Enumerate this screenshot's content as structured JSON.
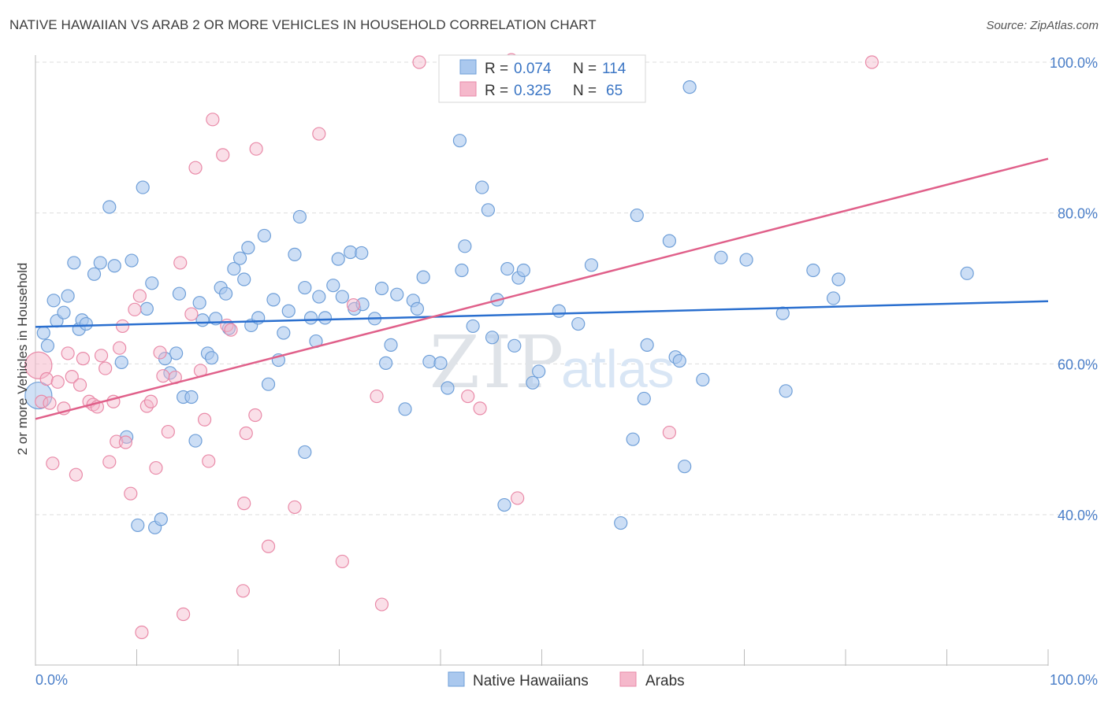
{
  "title": "NATIVE HAWAIIAN VS ARAB 2 OR MORE VEHICLES IN HOUSEHOLD CORRELATION CHART",
  "source": "Source: ZipAtlas.com",
  "watermark": {
    "zip": "ZIP",
    "atlas": "atlas"
  },
  "colors": {
    "blue_fill": "#aac8ee",
    "blue_stroke": "#6f9fd8",
    "blue_line": "#2a6fcf",
    "pink_fill": "#f5b8cb",
    "pink_stroke": "#e98aa8",
    "pink_line": "#e0608a",
    "tick_text": "#4a7ec8",
    "grid": "#dddddd"
  },
  "legend": {
    "r_label": "R =",
    "n_label": "N =",
    "rows": [
      {
        "r": "0.074",
        "n": "114"
      },
      {
        "r": "0.325",
        "n": "65"
      }
    ]
  },
  "bottom_legend": [
    "Native Hawaiians",
    "Arabs"
  ],
  "chart_data": {
    "type": "scatter",
    "title": "NATIVE HAWAIIAN VS ARAB 2 OR MORE VEHICLES IN HOUSEHOLD CORRELATION CHART",
    "xlabel": "",
    "ylabel": "2 or more Vehicles in Household",
    "xlim": [
      0,
      100
    ],
    "ylim": [
      20,
      103
    ],
    "x_tick_labels": [
      "0.0%",
      "100.0%"
    ],
    "y_tick_labels": [
      "40.0%",
      "60.0%",
      "80.0%",
      "100.0%"
    ],
    "y_ticks": [
      40,
      60,
      80,
      100
    ],
    "grid": true,
    "legend_position": "top-center",
    "series": [
      {
        "name": "Native Hawaiians",
        "r": 0.074,
        "n": 114,
        "trend": {
          "x": [
            0,
            100
          ],
          "y": [
            64.9,
            68.3
          ]
        },
        "points": [
          [
            0.3,
            55.8
          ],
          [
            0.8,
            64.1
          ],
          [
            1.2,
            62.4
          ],
          [
            1.8,
            68.4
          ],
          [
            2.1,
            65.7
          ],
          [
            2.8,
            66.8
          ],
          [
            3.2,
            69.0
          ],
          [
            3.8,
            73.4
          ],
          [
            4.3,
            64.6
          ],
          [
            4.6,
            65.8
          ],
          [
            5.0,
            65.3
          ],
          [
            5.8,
            71.9
          ],
          [
            6.4,
            73.4
          ],
          [
            7.3,
            80.8
          ],
          [
            7.8,
            73.0
          ],
          [
            8.5,
            60.2
          ],
          [
            9.0,
            50.3
          ],
          [
            9.5,
            73.7
          ],
          [
            10.1,
            38.6
          ],
          [
            10.6,
            83.4
          ],
          [
            11.0,
            67.3
          ],
          [
            11.5,
            70.7
          ],
          [
            11.8,
            38.3
          ],
          [
            12.4,
            39.4
          ],
          [
            12.8,
            60.7
          ],
          [
            13.3,
            58.8
          ],
          [
            13.9,
            61.4
          ],
          [
            14.2,
            69.3
          ],
          [
            14.6,
            55.6
          ],
          [
            15.4,
            55.6
          ],
          [
            15.8,
            49.8
          ],
          [
            16.2,
            68.1
          ],
          [
            16.5,
            65.8
          ],
          [
            17.0,
            61.4
          ],
          [
            17.4,
            60.8
          ],
          [
            17.8,
            66.0
          ],
          [
            18.3,
            70.1
          ],
          [
            18.8,
            69.3
          ],
          [
            19.6,
            72.6
          ],
          [
            20.2,
            74.0
          ],
          [
            20.6,
            71.2
          ],
          [
            21.0,
            75.4
          ],
          [
            21.3,
            65.1
          ],
          [
            22.0,
            66.1
          ],
          [
            22.6,
            77.0
          ],
          [
            23.0,
            57.3
          ],
          [
            23.5,
            68.5
          ],
          [
            24.0,
            60.5
          ],
          [
            24.5,
            64.1
          ],
          [
            25.0,
            67.0
          ],
          [
            25.6,
            74.5
          ],
          [
            26.1,
            79.5
          ],
          [
            26.6,
            70.1
          ],
          [
            27.2,
            66.1
          ],
          [
            27.7,
            63.0
          ],
          [
            28.0,
            68.9
          ],
          [
            28.6,
            66.1
          ],
          [
            29.4,
            70.4
          ],
          [
            29.9,
            73.9
          ],
          [
            30.3,
            68.9
          ],
          [
            31.1,
            74.8
          ],
          [
            31.5,
            67.3
          ],
          [
            32.2,
            74.7
          ],
          [
            32.3,
            67.9
          ],
          [
            33.5,
            66.0
          ],
          [
            34.2,
            70.0
          ],
          [
            34.6,
            60.1
          ],
          [
            35.1,
            62.5
          ],
          [
            35.7,
            69.2
          ],
          [
            36.5,
            54.0
          ],
          [
            37.3,
            68.4
          ],
          [
            37.7,
            67.3
          ],
          [
            38.3,
            71.5
          ],
          [
            38.9,
            60.3
          ],
          [
            40.0,
            60.1
          ],
          [
            40.7,
            56.8
          ],
          [
            41.9,
            89.6
          ],
          [
            42.1,
            72.4
          ],
          [
            42.4,
            75.6
          ],
          [
            43.2,
            65.0
          ],
          [
            44.1,
            83.4
          ],
          [
            44.7,
            80.4
          ],
          [
            45.1,
            63.5
          ],
          [
            45.6,
            68.5
          ],
          [
            46.3,
            41.3
          ],
          [
            46.6,
            72.6
          ],
          [
            47.3,
            62.4
          ],
          [
            47.7,
            71.4
          ],
          [
            48.2,
            72.4
          ],
          [
            49.1,
            57.5
          ],
          [
            49.7,
            59.0
          ],
          [
            51.7,
            67.0
          ],
          [
            53.6,
            65.3
          ],
          [
            54.9,
            73.1
          ],
          [
            57.8,
            38.9
          ],
          [
            59.0,
            50.0
          ],
          [
            59.4,
            79.7
          ],
          [
            60.1,
            55.4
          ],
          [
            60.4,
            62.5
          ],
          [
            62.6,
            76.3
          ],
          [
            63.2,
            60.9
          ],
          [
            63.6,
            60.4
          ],
          [
            64.1,
            46.4
          ],
          [
            64.6,
            96.7
          ],
          [
            65.9,
            57.9
          ],
          [
            67.7,
            74.1
          ],
          [
            70.2,
            73.8
          ],
          [
            73.8,
            66.7
          ],
          [
            74.1,
            56.4
          ],
          [
            76.8,
            72.4
          ],
          [
            79.3,
            71.2
          ],
          [
            78.8,
            68.7
          ],
          [
            92.0,
            72.0
          ],
          [
            26.6,
            48.3
          ],
          [
            19.1,
            64.7
          ]
        ]
      },
      {
        "name": "Arabs",
        "r": 0.325,
        "n": 65,
        "trend": {
          "x": [
            0,
            100
          ],
          "y": [
            52.7,
            87.2
          ]
        },
        "points": [
          [
            0.3,
            59.8
          ],
          [
            0.6,
            55.0
          ],
          [
            1.1,
            58.0
          ],
          [
            1.4,
            54.8
          ],
          [
            1.7,
            46.8
          ],
          [
            2.2,
            57.6
          ],
          [
            2.8,
            54.1
          ],
          [
            3.2,
            61.4
          ],
          [
            3.6,
            58.3
          ],
          [
            4.0,
            45.3
          ],
          [
            4.4,
            57.2
          ],
          [
            4.7,
            60.7
          ],
          [
            5.3,
            55.0
          ],
          [
            5.7,
            54.6
          ],
          [
            6.1,
            54.3
          ],
          [
            6.5,
            61.1
          ],
          [
            6.9,
            59.4
          ],
          [
            7.3,
            47.0
          ],
          [
            7.7,
            55.0
          ],
          [
            8.0,
            49.7
          ],
          [
            8.3,
            62.1
          ],
          [
            8.6,
            65.0
          ],
          [
            8.9,
            49.6
          ],
          [
            9.4,
            42.8
          ],
          [
            9.8,
            67.2
          ],
          [
            10.3,
            69.0
          ],
          [
            10.5,
            24.4
          ],
          [
            11.0,
            54.4
          ],
          [
            11.4,
            55.0
          ],
          [
            11.9,
            46.2
          ],
          [
            12.3,
            61.5
          ],
          [
            12.6,
            58.4
          ],
          [
            13.1,
            51.0
          ],
          [
            13.8,
            58.2
          ],
          [
            14.3,
            73.4
          ],
          [
            14.6,
            26.8
          ],
          [
            15.4,
            66.6
          ],
          [
            15.8,
            86.0
          ],
          [
            16.3,
            59.1
          ],
          [
            16.7,
            52.6
          ],
          [
            17.1,
            47.1
          ],
          [
            17.5,
            92.4
          ],
          [
            18.5,
            87.7
          ],
          [
            18.9,
            65.1
          ],
          [
            19.3,
            64.5
          ],
          [
            20.5,
            29.9
          ],
          [
            20.6,
            41.5
          ],
          [
            20.8,
            50.8
          ],
          [
            21.7,
            53.2
          ],
          [
            21.8,
            88.5
          ],
          [
            23.0,
            35.8
          ],
          [
            25.6,
            41.0
          ],
          [
            28.0,
            90.5
          ],
          [
            30.3,
            33.8
          ],
          [
            31.4,
            67.8
          ],
          [
            33.7,
            55.7
          ],
          [
            34.2,
            28.1
          ],
          [
            37.9,
            100.0
          ],
          [
            42.7,
            55.7
          ],
          [
            43.9,
            54.1
          ],
          [
            47.6,
            42.2
          ],
          [
            57.3,
            100.0
          ],
          [
            62.6,
            50.9
          ],
          [
            82.6,
            100.0
          ],
          [
            47.0,
            100.3
          ]
        ]
      }
    ]
  }
}
